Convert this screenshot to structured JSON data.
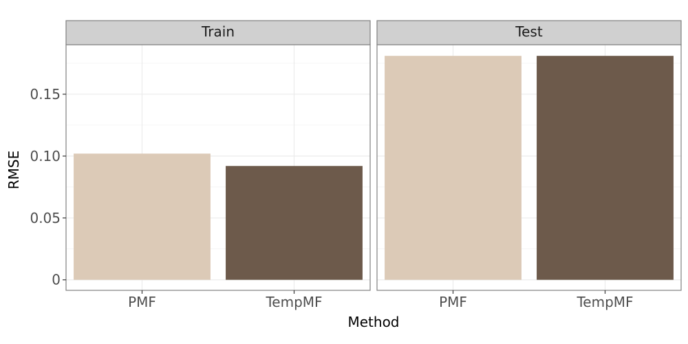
{
  "chart_data": {
    "type": "bar",
    "facets": [
      "Train",
      "Test"
    ],
    "categories": [
      "PMF",
      "TempMF"
    ],
    "series": [
      {
        "facet": "Train",
        "values": [
          0.102,
          0.092
        ]
      },
      {
        "facet": "Test",
        "values": [
          0.181,
          0.181
        ]
      }
    ],
    "colors": [
      "#dccab7",
      "#6d5a4b"
    ],
    "xlabel": "Method",
    "ylabel": "RMSE",
    "ylim": [
      -0.0085,
      0.19
    ],
    "yticks": [
      0,
      0.05,
      0.1,
      0.15
    ],
    "ytick_labels": [
      "0",
      "0.05",
      "0.10",
      "0.15"
    ],
    "grid": true,
    "legend": "none"
  }
}
